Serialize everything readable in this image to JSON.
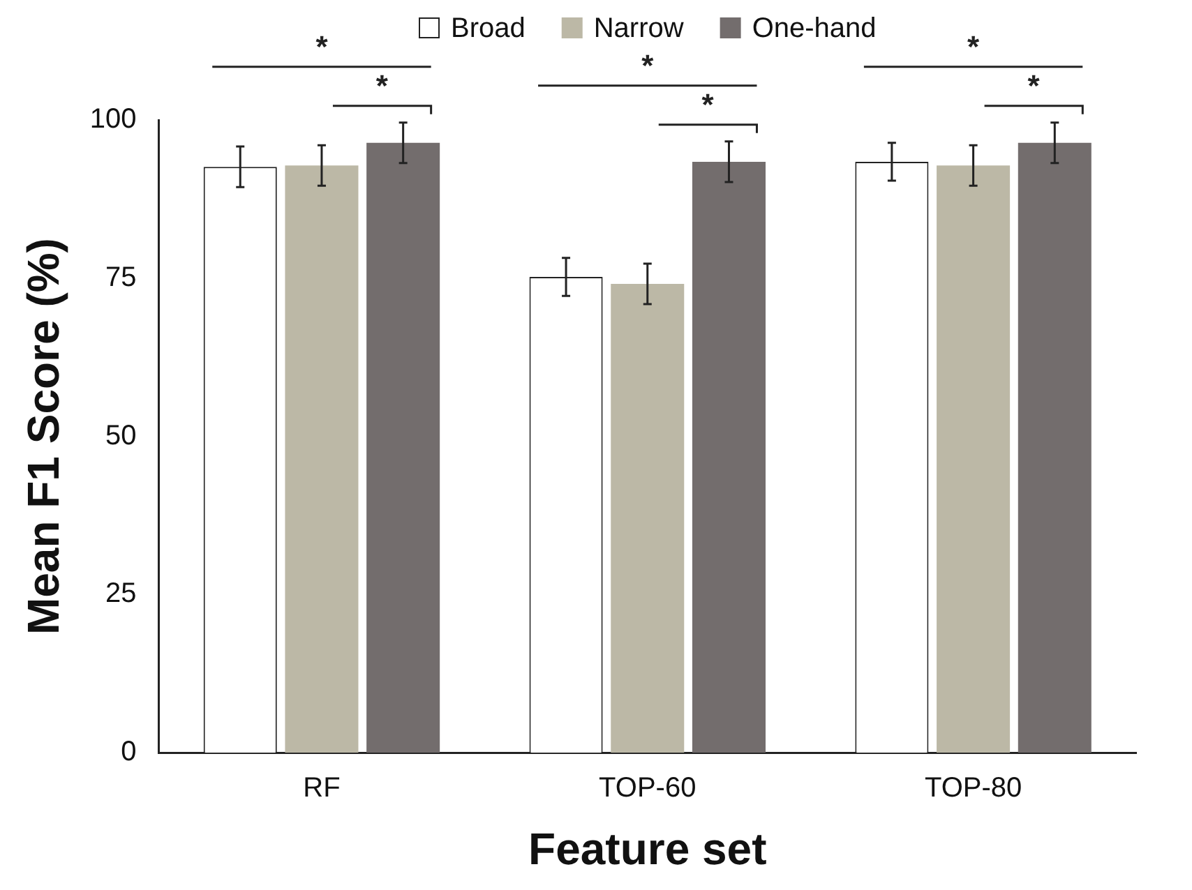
{
  "chart_data": {
    "type": "bar",
    "xlabel": "Feature set",
    "ylabel": "Mean F1 Score (%)",
    "categories": [
      "RF",
      "TOP-60",
      "TOP-80"
    ],
    "series": [
      {
        "name": "Broad",
        "color": "#ffffff",
        "values": [
          92.6,
          75.2,
          93.4
        ],
        "errors": [
          3.2,
          3,
          3
        ]
      },
      {
        "name": "Narrow",
        "color": "#bcb8a6",
        "values": [
          92.8,
          74.1,
          92.8
        ],
        "errors": [
          3.2,
          3.2,
          3.2
        ]
      },
      {
        "name": "One-hand",
        "color": "#736d6d",
        "values": [
          96.4,
          93.4,
          96.4
        ],
        "errors": [
          3.2,
          3.2,
          3.2
        ]
      }
    ],
    "ylim": [
      0,
      100
    ],
    "yticks": [
      0,
      25,
      50,
      75,
      100
    ],
    "grid": false,
    "legend": "top",
    "annotations": [
      "*",
      "*",
      "*",
      "*",
      "*",
      "*"
    ]
  }
}
